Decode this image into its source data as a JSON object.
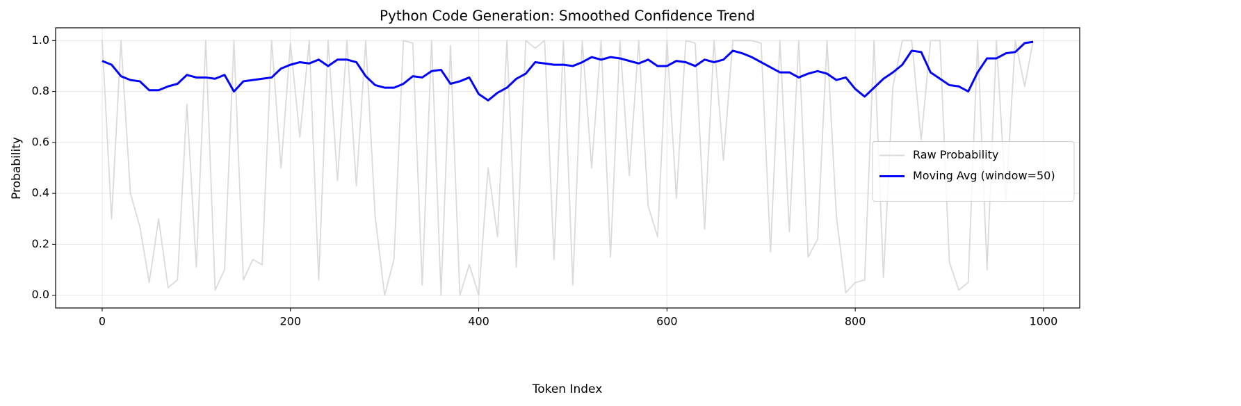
{
  "chart_data": {
    "type": "line",
    "title": "Python Code Generation: Smoothed Confidence Trend",
    "xlabel": "Token Index",
    "ylabel": "Probability",
    "x": [
      0,
      10,
      20,
      30,
      40,
      50,
      60,
      70,
      80,
      90,
      100,
      110,
      120,
      130,
      140,
      150,
      160,
      170,
      180,
      190,
      200,
      210,
      220,
      230,
      240,
      250,
      260,
      270,
      280,
      290,
      300,
      310,
      320,
      330,
      340,
      350,
      360,
      370,
      380,
      390,
      400,
      410,
      420,
      430,
      440,
      450,
      460,
      470,
      480,
      490,
      500,
      510,
      520,
      530,
      540,
      550,
      560,
      570,
      580,
      590,
      600,
      610,
      620,
      630,
      640,
      650,
      660,
      670,
      680,
      690,
      700,
      710,
      720,
      730,
      740,
      750,
      760,
      770,
      780,
      790,
      800,
      810,
      820,
      830,
      840,
      850,
      860,
      870,
      880,
      890,
      900,
      910,
      920,
      930,
      940,
      950,
      960,
      970,
      980,
      989
    ],
    "series": [
      {
        "name": "Raw Probability",
        "color": "#d3d3d3",
        "values": [
          1,
          0.3,
          1,
          0.4,
          0.27,
          0.05,
          0.3,
          0.03,
          0.06,
          0.75,
          0.11,
          1,
          0.02,
          0.1,
          1,
          0.06,
          0.14,
          0.12,
          1,
          0.5,
          0.99,
          0.62,
          1,
          0.06,
          1,
          0.45,
          1,
          0.43,
          1,
          0.31,
          0.0,
          0.14,
          1,
          0.99,
          0.04,
          1,
          0.0,
          0.98,
          0.0,
          0.12,
          0.0,
          0.5,
          0.23,
          1,
          0.11,
          1,
          0.97,
          1,
          0.14,
          1,
          0.04,
          1,
          0.5,
          1,
          0.15,
          1,
          0.47,
          1,
          0.35,
          0.23,
          1,
          0.38,
          1,
          0.99,
          0.26,
          1,
          0.53,
          1,
          1,
          1,
          0.99,
          0.17,
          1,
          0.25,
          1,
          0.15,
          0.22,
          1,
          0.31,
          0.01,
          0.05,
          0.06,
          1,
          0.07,
          0.82,
          1,
          1,
          0.61,
          1,
          1,
          0.13,
          0.02,
          0.05,
          1,
          0.1,
          1,
          0.37,
          1,
          0.82,
          1
        ]
      },
      {
        "name": "Moving Avg (window=50)",
        "color": "#0000ff",
        "values": [
          0.92,
          0.905,
          0.86,
          0.845,
          0.84,
          0.805,
          0.805,
          0.82,
          0.83,
          0.865,
          0.855,
          0.855,
          0.85,
          0.865,
          0.8,
          0.84,
          0.845,
          0.85,
          0.855,
          0.89,
          0.905,
          0.915,
          0.91,
          0.925,
          0.9,
          0.925,
          0.925,
          0.915,
          0.86,
          0.825,
          0.815,
          0.815,
          0.83,
          0.86,
          0.855,
          0.88,
          0.885,
          0.83,
          0.84,
          0.855,
          0.79,
          0.765,
          0.795,
          0.815,
          0.85,
          0.87,
          0.915,
          0.91,
          0.905,
          0.905,
          0.9,
          0.915,
          0.935,
          0.925,
          0.935,
          0.93,
          0.92,
          0.91,
          0.925,
          0.9,
          0.9,
          0.92,
          0.915,
          0.9,
          0.925,
          0.915,
          0.925,
          0.96,
          0.95,
          0.935,
          0.915,
          0.895,
          0.875,
          0.875,
          0.855,
          0.87,
          0.88,
          0.87,
          0.845,
          0.855,
          0.81,
          0.78,
          0.815,
          0.85,
          0.875,
          0.905,
          0.96,
          0.955,
          0.875,
          0.85,
          0.825,
          0.82,
          0.8,
          0.875,
          0.93,
          0.93,
          0.95,
          0.955,
          0.99,
          0.995
        ]
      }
    ],
    "xlim": [
      -49.45,
      1038.45
    ],
    "ylim": [
      -0.05,
      1.05
    ],
    "xticks": [
      0,
      200,
      400,
      600,
      800,
      1000
    ],
    "yticks": [
      {
        "value": 0,
        "label": "0.0"
      },
      0.2,
      0.4,
      0.6,
      0.8,
      {
        "value": 1,
        "label": "1.0"
      }
    ],
    "grid": true,
    "legend": "right"
  }
}
